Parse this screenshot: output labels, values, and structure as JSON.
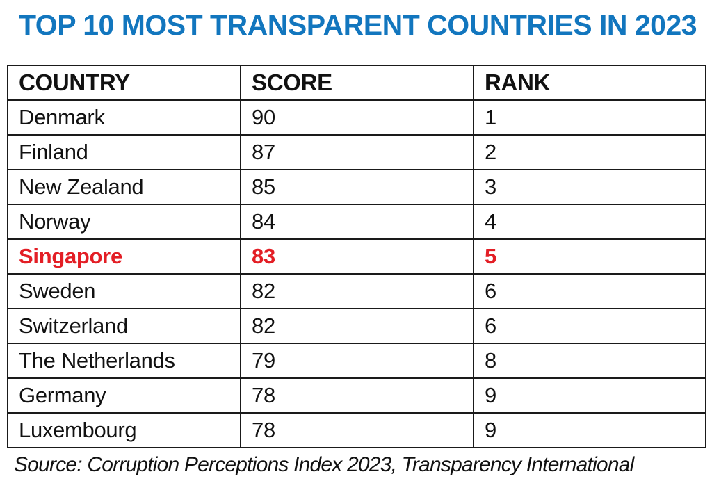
{
  "title": "TOP 10 MOST TRANSPARENT COUNTRIES IN 2023",
  "table": {
    "headers": [
      "COUNTRY",
      "SCORE",
      "RANK"
    ],
    "rows": [
      {
        "country": "Denmark",
        "score": "90",
        "rank": "1",
        "highlighted": false
      },
      {
        "country": "Finland",
        "score": "87",
        "rank": "2",
        "highlighted": false
      },
      {
        "country": "New Zealand",
        "score": "85",
        "rank": "3",
        "highlighted": false
      },
      {
        "country": "Norway",
        "score": "84",
        "rank": "4",
        "highlighted": false
      },
      {
        "country": "Singapore",
        "score": "83",
        "rank": "5",
        "highlighted": true
      },
      {
        "country": "Sweden",
        "score": "82",
        "rank": "6",
        "highlighted": false
      },
      {
        "country": "Switzerland",
        "score": "82",
        "rank": "6",
        "highlighted": false
      },
      {
        "country": "The Netherlands",
        "score": "79",
        "rank": "8",
        "highlighted": false
      },
      {
        "country": "Germany",
        "score": "78",
        "rank": "9",
        "highlighted": false
      },
      {
        "country": "Luxembourg",
        "score": "78",
        "rank": "9",
        "highlighted": false
      }
    ]
  },
  "source": "Source: Corruption Perceptions Index 2023, Transparency International",
  "colors": {
    "title_blue": "#1276be",
    "highlight_red": "#e31e25",
    "border": "#1a1a1a",
    "text": "#111111",
    "background": "#ffffff"
  },
  "chart_data": {
    "type": "table",
    "title": "TOP 10 MOST TRANSPARENT COUNTRIES IN 2023",
    "columns": [
      "COUNTRY",
      "SCORE",
      "RANK"
    ],
    "rows": [
      [
        "Denmark",
        90,
        1
      ],
      [
        "Finland",
        87,
        2
      ],
      [
        "New Zealand",
        85,
        3
      ],
      [
        "Norway",
        84,
        4
      ],
      [
        "Singapore",
        83,
        5
      ],
      [
        "Sweden",
        82,
        6
      ],
      [
        "Switzerland",
        82,
        6
      ],
      [
        "The Netherlands",
        79,
        8
      ],
      [
        "Germany",
        78,
        9
      ],
      [
        "Luxembourg",
        78,
        9
      ]
    ],
    "highlighted_row": "Singapore",
    "source": "Source: Corruption Perceptions Index 2023, Transparency International",
    "layout": {
      "header_row": true,
      "grid": true,
      "highlight_style": "red bold text"
    }
  }
}
